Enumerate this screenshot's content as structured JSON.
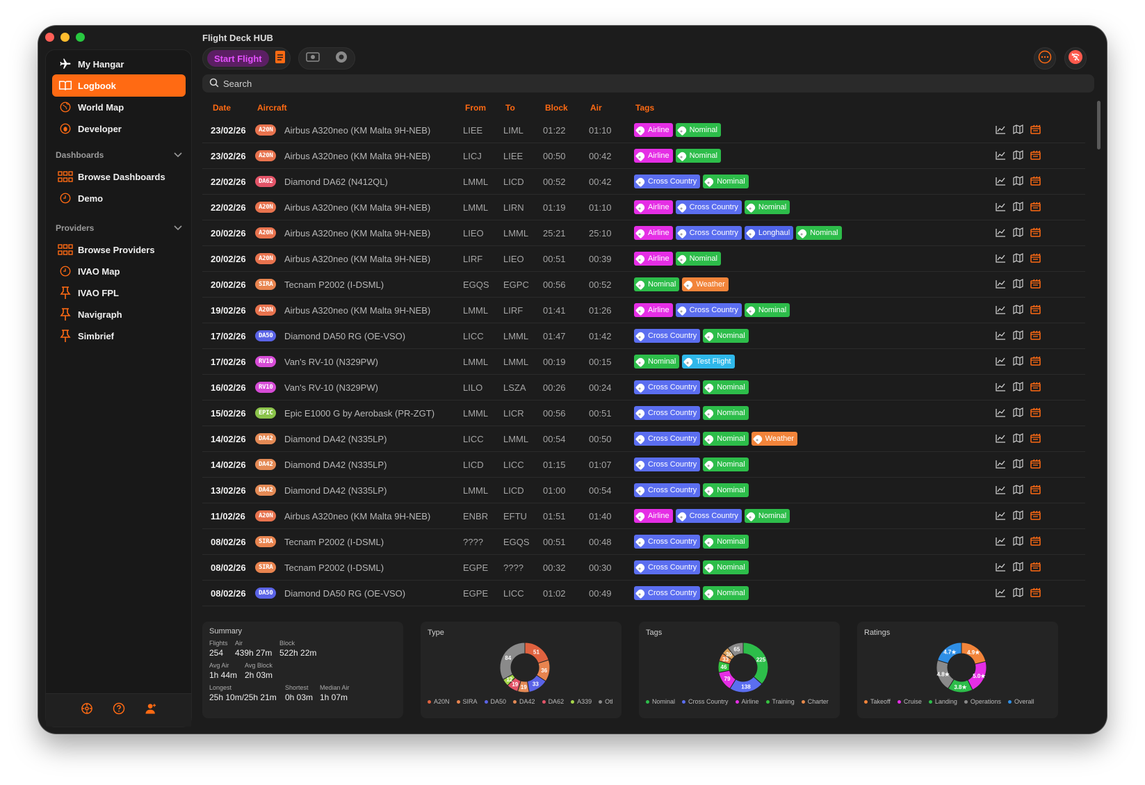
{
  "app": {
    "title": "Flight Deck HUB"
  },
  "toolbar": {
    "start_flight": "Start Flight"
  },
  "search": {
    "placeholder": "Search"
  },
  "sidebar": {
    "items": [
      {
        "label": "My Hangar",
        "icon": "airplane-icon"
      },
      {
        "label": "Logbook",
        "icon": "book-icon",
        "active": true
      },
      {
        "label": "World Map",
        "icon": "globe-icon"
      },
      {
        "label": "Developer",
        "icon": "bug-icon"
      }
    ],
    "dashboards_label": "Dashboards",
    "dashboards": [
      {
        "label": "Browse Dashboards",
        "icon": "grid-icon"
      },
      {
        "label": "Demo",
        "icon": "clock-icon"
      }
    ],
    "providers_label": "Providers",
    "providers": [
      {
        "label": "Browse Providers",
        "icon": "grid-icon"
      },
      {
        "label": "IVAO Map",
        "icon": "clock-icon"
      },
      {
        "label": "IVAO FPL",
        "icon": "pin-icon"
      },
      {
        "label": "Navigraph",
        "icon": "pin-icon"
      },
      {
        "label": "Simbrief",
        "icon": "pin-icon"
      }
    ]
  },
  "table": {
    "headers": {
      "date": "Date",
      "aircraft": "Aircraft",
      "from": "From",
      "to": "To",
      "block": "Block",
      "air": "Air",
      "tags": "Tags"
    },
    "rows": [
      {
        "date": "23/02/26",
        "badge": "A20N",
        "aircraft": "Airbus A320neo  (KM Malta 9H-NEB)",
        "from": "LIEE",
        "to": "LIML",
        "block": "01:22",
        "air": "01:10",
        "tags": [
          "Airline",
          "Nominal"
        ]
      },
      {
        "date": "23/02/26",
        "badge": "A20N",
        "aircraft": "Airbus A320neo  (KM Malta 9H-NEB)",
        "from": "LICJ",
        "to": "LIEE",
        "block": "00:50",
        "air": "00:42",
        "tags": [
          "Airline",
          "Nominal"
        ]
      },
      {
        "date": "22/02/26",
        "badge": "DA62",
        "aircraft": "Diamond DA62  (N412QL)",
        "from": "LMML",
        "to": "LICD",
        "block": "00:52",
        "air": "00:42",
        "tags": [
          "Cross Country",
          "Nominal"
        ]
      },
      {
        "date": "22/02/26",
        "badge": "A20N",
        "aircraft": "Airbus A320neo  (KM Malta 9H-NEB)",
        "from": "LMML",
        "to": "LIRN",
        "block": "01:19",
        "air": "01:10",
        "tags": [
          "Airline",
          "Cross Country",
          "Nominal"
        ]
      },
      {
        "date": "20/02/26",
        "badge": "A20N",
        "aircraft": "Airbus A320neo  (KM Malta 9H-NEB)",
        "from": "LIEO",
        "to": "LMML",
        "block": "25:21",
        "air": "25:10",
        "tags": [
          "Airline",
          "Cross Country",
          "Longhaul",
          "Nominal"
        ]
      },
      {
        "date": "20/02/26",
        "badge": "A20N",
        "aircraft": "Airbus A320neo  (KM Malta 9H-NEB)",
        "from": "LIRF",
        "to": "LIEO",
        "block": "00:51",
        "air": "00:39",
        "tags": [
          "Airline",
          "Nominal"
        ]
      },
      {
        "date": "20/02/26",
        "badge": "SIRA",
        "aircraft": "Tecnam P2002  (I-DSML)",
        "from": "EGQS",
        "to": "EGPC",
        "block": "00:56",
        "air": "00:52",
        "tags": [
          "Nominal",
          "Weather"
        ]
      },
      {
        "date": "19/02/26",
        "badge": "A20N",
        "aircraft": "Airbus A320neo  (KM Malta 9H-NEB)",
        "from": "LMML",
        "to": "LIRF",
        "block": "01:41",
        "air": "01:26",
        "tags": [
          "Airline",
          "Cross Country",
          "Nominal"
        ]
      },
      {
        "date": "17/02/26",
        "badge": "DA50",
        "aircraft": "Diamond DA50 RG  (OE-VSO)",
        "from": "LICC",
        "to": "LMML",
        "block": "01:47",
        "air": "01:42",
        "tags": [
          "Cross Country",
          "Nominal"
        ]
      },
      {
        "date": "17/02/26",
        "badge": "RV10",
        "aircraft": "Van's RV-10  (N329PW)",
        "from": "LMML",
        "to": "LMML",
        "block": "00:19",
        "air": "00:15",
        "tags": [
          "Nominal",
          "Test Flight"
        ]
      },
      {
        "date": "16/02/26",
        "badge": "RV10",
        "aircraft": "Van's RV-10  (N329PW)",
        "from": "LILO",
        "to": "LSZA",
        "block": "00:26",
        "air": "00:24",
        "tags": [
          "Cross Country",
          "Nominal"
        ]
      },
      {
        "date": "15/02/26",
        "badge": "EPIC",
        "aircraft": "Epic E1000 G by Aerobask  (PR-ZGT)",
        "from": "LMML",
        "to": "LICR",
        "block": "00:56",
        "air": "00:51",
        "tags": [
          "Cross Country",
          "Nominal"
        ]
      },
      {
        "date": "14/02/26",
        "badge": "DA42",
        "aircraft": "Diamond DA42  (N335LP)",
        "from": "LICC",
        "to": "LMML",
        "block": "00:54",
        "air": "00:50",
        "tags": [
          "Cross Country",
          "Nominal",
          "Weather"
        ]
      },
      {
        "date": "14/02/26",
        "badge": "DA42",
        "aircraft": "Diamond DA42  (N335LP)",
        "from": "LICD",
        "to": "LICC",
        "block": "01:15",
        "air": "01:07",
        "tags": [
          "Cross Country",
          "Nominal"
        ]
      },
      {
        "date": "13/02/26",
        "badge": "DA42",
        "aircraft": "Diamond DA42  (N335LP)",
        "from": "LMML",
        "to": "LICD",
        "block": "01:00",
        "air": "00:54",
        "tags": [
          "Cross Country",
          "Nominal"
        ]
      },
      {
        "date": "11/02/26",
        "badge": "A20N",
        "aircraft": "Airbus A320neo  (KM Malta 9H-NEB)",
        "from": "ENBR",
        "to": "EFTU",
        "block": "01:51",
        "air": "01:40",
        "tags": [
          "Airline",
          "Cross Country",
          "Nominal"
        ]
      },
      {
        "date": "08/02/26",
        "badge": "SIRA",
        "aircraft": "Tecnam P2002  (I-DSML)",
        "from": "????",
        "to": "EGQS",
        "block": "00:51",
        "air": "00:48",
        "tags": [
          "Cross Country",
          "Nominal"
        ]
      },
      {
        "date": "08/02/26",
        "badge": "SIRA",
        "aircraft": "Tecnam P2002  (I-DSML)",
        "from": "EGPE",
        "to": "????",
        "block": "00:32",
        "air": "00:30",
        "tags": [
          "Cross Country",
          "Nominal"
        ]
      },
      {
        "date": "08/02/26",
        "badge": "DA50",
        "aircraft": "Diamond DA50 RG  (OE-VSO)",
        "from": "EGPE",
        "to": "LICC",
        "block": "01:02",
        "air": "00:49",
        "tags": [
          "Cross Country",
          "Nominal"
        ]
      }
    ]
  },
  "colors": {
    "accent": "#ff6a13",
    "badges": {
      "A20N": "#e8734e",
      "DA62": "#e35468",
      "SIRA": "#e8844f",
      "DA50": "#5a63e6",
      "RV10": "#d64bd6",
      "EPIC": "#8bc34a",
      "DA42": "#e48a55"
    },
    "tags": {
      "Airline": "#e52ee5",
      "Nominal": "#2dbd4a",
      "Cross Country": "#5b6ef0",
      "Longhaul": "#4f64e8",
      "Weather": "#f2843a",
      "Test Flight": "#2fb8ea"
    }
  },
  "summary": {
    "title": "Summary",
    "flights_label": "Flights",
    "flights": "254",
    "air_label": "Air",
    "air": "439h 27m",
    "block_label": "Block",
    "block": "522h 22m",
    "avg_air_label": "Avg Air",
    "avg_air": "1h 44m",
    "avg_block_label": "Avg Block",
    "avg_block": "2h 03m",
    "longest_label": "Longest",
    "longest": "25h 10m/25h 21m",
    "shortest_label": "Shortest",
    "shortest": "0h 03m",
    "median_air_label": "Median Air",
    "median_air": "1h 07m"
  },
  "chart_data": [
    {
      "type": "pie",
      "title": "Type",
      "categories": [
        "A20N",
        "SIRA",
        "DA50",
        "DA42",
        "DA62",
        "A339",
        "Ot"
      ],
      "values": [
        51,
        36,
        33,
        19,
        19,
        12,
        84
      ],
      "legend": [
        "A20N",
        "SIRA",
        "DA50",
        "DA42",
        "DA62",
        "A339",
        "Otl"
      ],
      "colors": [
        "#e0623f",
        "#e8844f",
        "#5a63e6",
        "#e48a55",
        "#e35468",
        "#a6d64a",
        "#8a8a8a"
      ]
    },
    {
      "type": "pie",
      "title": "Tags",
      "categories": [
        "Nominal",
        "Cross Country",
        "Airline",
        "Training",
        "Charter",
        "Other1",
        "Other2"
      ],
      "values": [
        225,
        138,
        79,
        46,
        33,
        30,
        65
      ],
      "legend": [
        "Nominal",
        "Cross Country",
        "Airline",
        "Training",
        "Charter"
      ],
      "colors": [
        "#2dbd4a",
        "#5b6ef0",
        "#e52ee5",
        "#35c23f",
        "#e88a4a",
        "#d9a05a",
        "#8a8a8a"
      ]
    },
    {
      "type": "pie",
      "title": "Ratings",
      "categories": [
        "Takeoff",
        "Cruise",
        "Landing",
        "Operations",
        "Overall"
      ],
      "values": [
        4.9,
        5.0,
        3.8,
        4.8,
        4.7
      ],
      "labels": [
        "4.9★",
        "5.0★",
        "3.8★",
        "4.8★",
        "4.7★"
      ],
      "legend": [
        "Takeoff",
        "Cruise",
        "Landing",
        "Operations",
        "Overall"
      ],
      "colors": [
        "#f2843a",
        "#e52ee5",
        "#2dbd4a",
        "#8a8a8a",
        "#2f8fe6"
      ]
    }
  ]
}
